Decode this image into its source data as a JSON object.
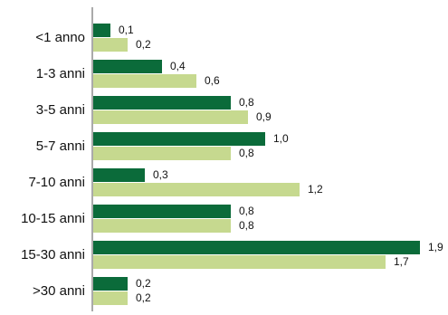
{
  "chart_data": {
    "type": "bar",
    "orientation": "horizontal",
    "categories": [
      "<1 anno",
      "1-3 anni",
      "3-5 anni",
      "5-7 anni",
      "7-10 anni",
      "10-15 anni",
      "15-30 anni",
      ">30 anni"
    ],
    "series": [
      {
        "color": "#0b6b3a",
        "values": [
          0.1,
          0.4,
          0.8,
          1.0,
          0.3,
          0.8,
          1.9,
          0.2
        ],
        "labels": [
          "0,1",
          "0,4",
          "0,8",
          "1,0",
          "0,3",
          "0,8",
          "1,9",
          "0,2"
        ]
      },
      {
        "color": "#c6d98f",
        "values": [
          0.2,
          0.6,
          0.9,
          0.8,
          1.2,
          0.8,
          1.7,
          0.2
        ],
        "labels": [
          "0,2",
          "0,6",
          "0,9",
          "0,8",
          "1,2",
          "0,8",
          "1,7",
          "0,2"
        ]
      }
    ],
    "xlim": [
      0,
      1.9
    ],
    "grid": false,
    "legend": "none"
  }
}
